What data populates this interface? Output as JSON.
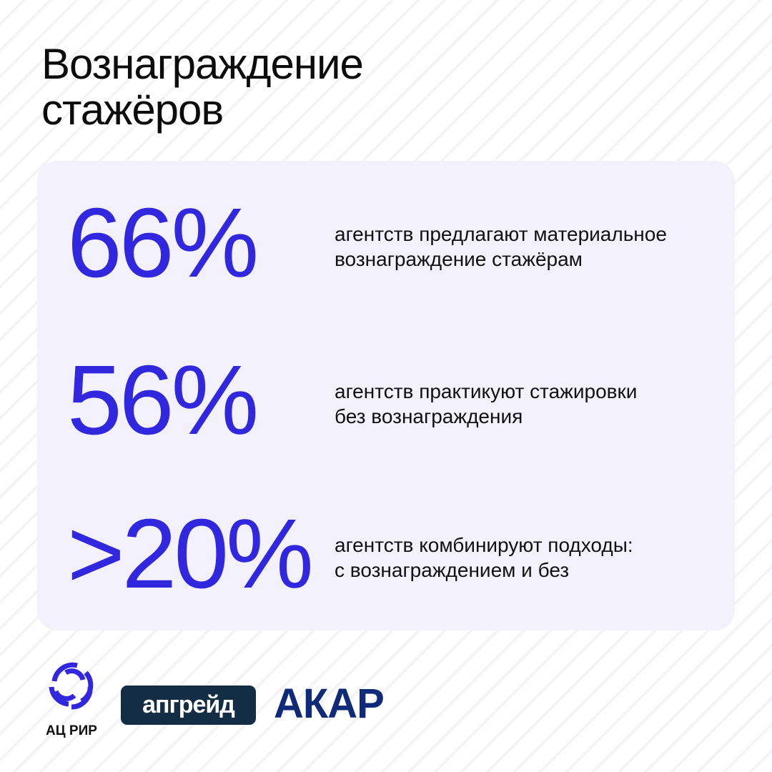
{
  "header": {
    "title_line1": "Вознаграждение",
    "title_line2": "стажёров"
  },
  "stats": [
    {
      "value": "66%",
      "line1": "агентств предлагают материальное",
      "line2": "вознаграждение стажёрам"
    },
    {
      "value": "56%",
      "line1": "агентств практикуют стажировки",
      "line2": "без вознаграждения"
    },
    {
      "value": ">20%",
      "line1": "агентств комбинируют подходы:",
      "line2": "с вознаграждением и без"
    }
  ],
  "logos": {
    "rir": "АЦ РИР",
    "upgrade": "апгрейд",
    "akar": "АКАР"
  },
  "colors": {
    "accent": "#3127df",
    "card": "#f3f2fc",
    "upgrade_bg": "#132d45",
    "akar": "#0e2a78"
  }
}
